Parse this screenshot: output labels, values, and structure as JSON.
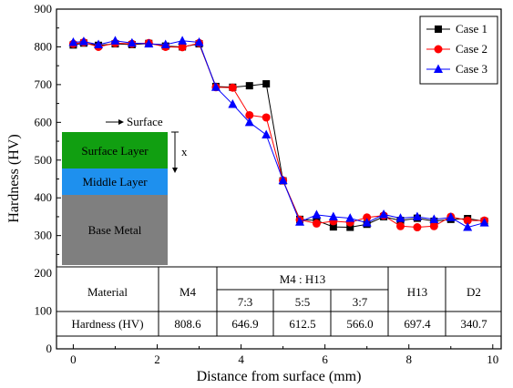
{
  "chart_data": {
    "type": "line",
    "xlabel": "Distance from surface (mm)",
    "ylabel": "Hardness (HV)",
    "xlim": [
      -0.4,
      10.2
    ],
    "ylim": [
      0,
      900
    ],
    "xticks": [
      "0",
      "2",
      "4",
      "6",
      "8",
      "10"
    ],
    "yticks": [
      "0",
      "100",
      "200",
      "300",
      "400",
      "500",
      "600",
      "700",
      "800",
      "900"
    ],
    "legend_position": "top-right",
    "series": [
      {
        "name": "Case 1",
        "color": "#000000",
        "marker": "square",
        "points": [
          [
            0.0,
            805
          ],
          [
            0.25,
            810
          ],
          [
            0.6,
            804
          ],
          [
            1.0,
            808
          ],
          [
            1.4,
            806
          ],
          [
            1.8,
            809
          ],
          [
            2.2,
            802
          ],
          [
            2.6,
            800
          ],
          [
            3.0,
            808
          ],
          [
            3.4,
            695
          ],
          [
            3.8,
            693
          ],
          [
            4.2,
            697
          ],
          [
            4.6,
            702
          ],
          [
            5.0,
            445
          ],
          [
            5.4,
            343
          ],
          [
            5.8,
            340
          ],
          [
            6.2,
            323
          ],
          [
            6.6,
            322
          ],
          [
            7.0,
            330
          ],
          [
            7.4,
            350
          ],
          [
            7.8,
            340
          ],
          [
            8.2,
            346
          ],
          [
            8.6,
            338
          ],
          [
            9.0,
            343
          ],
          [
            9.4,
            345
          ],
          [
            9.8,
            338
          ]
        ]
      },
      {
        "name": "Case 2",
        "color": "#ff0000",
        "marker": "circle",
        "points": [
          [
            0.0,
            808
          ],
          [
            0.25,
            812
          ],
          [
            0.6,
            800
          ],
          [
            1.0,
            810
          ],
          [
            1.4,
            808
          ],
          [
            1.8,
            810
          ],
          [
            2.2,
            800
          ],
          [
            2.6,
            799
          ],
          [
            3.0,
            810
          ],
          [
            3.4,
            693
          ],
          [
            3.8,
            692
          ],
          [
            4.2,
            619
          ],
          [
            4.6,
            613
          ],
          [
            5.0,
            446
          ],
          [
            5.4,
            342
          ],
          [
            5.8,
            332
          ],
          [
            6.2,
            338
          ],
          [
            6.6,
            335
          ],
          [
            7.0,
            348
          ],
          [
            7.4,
            353
          ],
          [
            7.8,
            325
          ],
          [
            8.2,
            322
          ],
          [
            8.6,
            325
          ],
          [
            9.0,
            350
          ],
          [
            9.4,
            340
          ],
          [
            9.8,
            340
          ]
        ]
      },
      {
        "name": "Case 3",
        "color": "#0000ff",
        "marker": "triangle",
        "points": [
          [
            0.0,
            812
          ],
          [
            0.25,
            814
          ],
          [
            0.6,
            806
          ],
          [
            1.0,
            816
          ],
          [
            1.4,
            810
          ],
          [
            1.8,
            808
          ],
          [
            2.2,
            806
          ],
          [
            2.6,
            816
          ],
          [
            3.0,
            812
          ],
          [
            3.4,
            693
          ],
          [
            3.8,
            648
          ],
          [
            4.2,
            600
          ],
          [
            4.6,
            567
          ],
          [
            5.0,
            446
          ],
          [
            5.4,
            336
          ],
          [
            5.8,
            355
          ],
          [
            6.2,
            350
          ],
          [
            6.6,
            346
          ],
          [
            7.0,
            334
          ],
          [
            7.4,
            356
          ],
          [
            7.8,
            346
          ],
          [
            8.2,
            350
          ],
          [
            8.6,
            343
          ],
          [
            9.0,
            348
          ],
          [
            9.4,
            322
          ],
          [
            9.8,
            334
          ]
        ]
      }
    ],
    "inset_diagram": {
      "surface_label": "Surface",
      "depth_label": "x",
      "layers": [
        {
          "label": "Surface Layer",
          "color": "#119f11"
        },
        {
          "label": "Middle Layer",
          "color": "#1e90ee"
        },
        {
          "label": "Base Metal",
          "color": "#7f7f7f"
        }
      ]
    },
    "table": {
      "material_header": "Material",
      "m4_header": "M4",
      "m4h13_header": "M4 : H13",
      "ratio_headers": [
        "7:3",
        "5:5",
        "3:7"
      ],
      "h13_header": "H13",
      "d2_header": "D2",
      "row_label": "Hardness (HV)",
      "values": [
        "808.6",
        "646.9",
        "612.5",
        "566.0",
        "697.4",
        "340.7"
      ]
    }
  }
}
